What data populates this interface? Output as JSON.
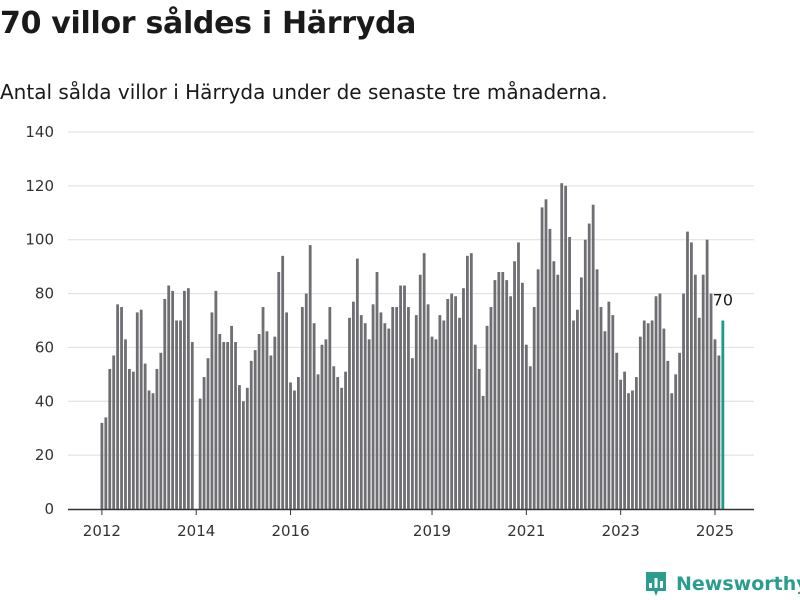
{
  "header": {
    "title": "70 villor såldes i Härryda",
    "subtitle": "Antal sålda villor i Härryda under de senaste tre månaderna."
  },
  "brand": {
    "name": "Newsworthy",
    "icon": "newsworthy-logo-icon",
    "color": "#2a9d8f"
  },
  "colors": {
    "bar": "#6e6e73",
    "highlight": "#1a9a8c",
    "grid": "#dddddd",
    "axis": "#333333"
  },
  "chart_data": {
    "type": "bar",
    "title": "70 villor såldes i Härryda",
    "subtitle": "Antal sålda villor i Härryda under de senaste tre månaderna.",
    "xlabel": "",
    "ylabel": "",
    "ylim": [
      0,
      140
    ],
    "yticks": [
      0,
      20,
      40,
      60,
      80,
      100,
      120,
      140
    ],
    "xtick_labels": [
      "2012",
      "2014",
      "2016",
      "2019",
      "2021",
      "2023",
      "2025"
    ],
    "grid": true,
    "start": "2012-01",
    "frequency": "monthly",
    "series": [
      {
        "values": [
          32,
          34,
          52,
          57,
          76,
          75,
          63,
          52,
          51,
          73,
          74,
          54,
          44,
          43,
          52,
          58,
          78,
          83,
          81,
          70,
          70,
          81,
          82,
          62,
          0,
          41,
          49,
          56,
          73,
          81,
          65,
          62,
          62,
          68,
          62,
          46,
          40,
          45,
          55,
          59,
          65,
          75,
          66,
          57,
          64,
          88,
          94,
          73,
          47,
          44,
          49,
          75,
          80,
          98,
          69,
          50,
          61,
          63,
          75,
          53,
          49,
          45,
          51,
          71,
          77,
          93,
          72,
          69,
          63,
          76,
          88,
          73,
          69,
          67,
          75,
          75,
          83,
          83,
          75,
          56,
          72,
          87,
          95,
          76,
          64,
          63,
          72,
          70,
          78,
          80,
          79,
          71,
          82,
          94,
          95,
          61,
          52,
          42,
          68,
          75,
          85,
          88,
          88,
          85,
          79,
          92,
          99,
          84,
          61,
          53,
          75,
          89,
          112,
          115,
          104,
          92,
          87,
          121,
          120,
          101,
          70,
          74,
          86,
          100,
          106,
          113,
          89,
          75,
          66,
          77,
          72,
          58,
          48,
          51,
          43,
          44,
          49,
          64,
          70,
          69,
          70,
          79,
          80,
          67,
          55,
          43,
          50,
          58,
          80,
          103,
          99,
          87,
          71,
          87,
          100,
          80,
          63,
          57,
          70
        ]
      }
    ],
    "latest": {
      "label": "70",
      "value": 70
    }
  }
}
